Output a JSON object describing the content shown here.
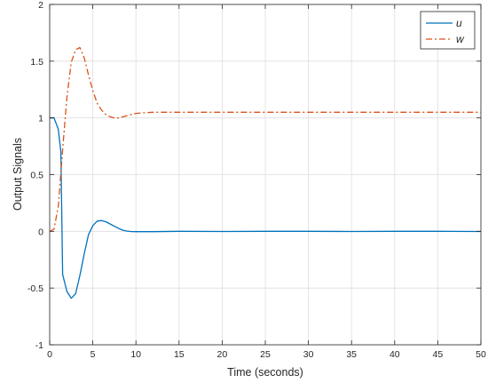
{
  "chart_data": {
    "type": "line",
    "title": "",
    "xlabel": "Time (seconds)",
    "ylabel": "Output Signals",
    "xlim": [
      0,
      50
    ],
    "ylim": [
      -1,
      2
    ],
    "xticks": [
      0,
      5,
      10,
      15,
      20,
      25,
      30,
      35,
      40,
      45,
      50
    ],
    "yticks": [
      -1,
      -0.5,
      0,
      0.5,
      1,
      1.5,
      2
    ],
    "xtick_labels": [
      "0",
      "5",
      "10",
      "15",
      "20",
      "25",
      "30",
      "35",
      "40",
      "45",
      "50"
    ],
    "ytick_labels": [
      "-1",
      "-0.5",
      "0",
      "0.5",
      "1",
      "1.5",
      "2"
    ],
    "grid": true,
    "legend_position": "top-right",
    "series": [
      {
        "name": "u",
        "color": "#0072BD",
        "style": "solid",
        "x": [
          0,
          0.5,
          1.0,
          1.3,
          1.5,
          2.0,
          2.5,
          3.0,
          3.5,
          4.0,
          4.5,
          5.0,
          5.5,
          6.0,
          6.5,
          7.0,
          7.5,
          8.0,
          8.5,
          9.0,
          9.5,
          10,
          12,
          15,
          20,
          25,
          30,
          35,
          40,
          45,
          50
        ],
        "y": [
          1.0,
          1.0,
          0.9,
          0.7,
          -0.38,
          -0.53,
          -0.59,
          -0.55,
          -0.39,
          -0.2,
          -0.03,
          0.05,
          0.09,
          0.095,
          0.085,
          0.065,
          0.045,
          0.025,
          0.01,
          0.002,
          -0.002,
          -0.003,
          -0.003,
          0.0,
          -0.001,
          0.0,
          0.0,
          -0.001,
          0.0,
          0.0,
          -0.001
        ]
      },
      {
        "name": "w",
        "color": "#D95319",
        "style": "dashdot",
        "x": [
          0,
          0.5,
          1.0,
          1.5,
          2.0,
          2.5,
          3.0,
          3.5,
          4.0,
          4.5,
          5.0,
          5.5,
          6.0,
          6.5,
          7.0,
          7.5,
          8.0,
          8.5,
          9.0,
          10,
          11,
          12,
          13,
          15,
          20,
          25,
          30,
          35,
          40,
          45,
          50
        ],
        "y": [
          0.0,
          0.02,
          0.22,
          0.72,
          1.18,
          1.49,
          1.6,
          1.62,
          1.53,
          1.38,
          1.24,
          1.13,
          1.07,
          1.03,
          1.01,
          1.0,
          1.0,
          1.01,
          1.02,
          1.04,
          1.045,
          1.05,
          1.05,
          1.05,
          1.05,
          1.05,
          1.05,
          1.05,
          1.05,
          1.05,
          1.05
        ]
      }
    ]
  }
}
